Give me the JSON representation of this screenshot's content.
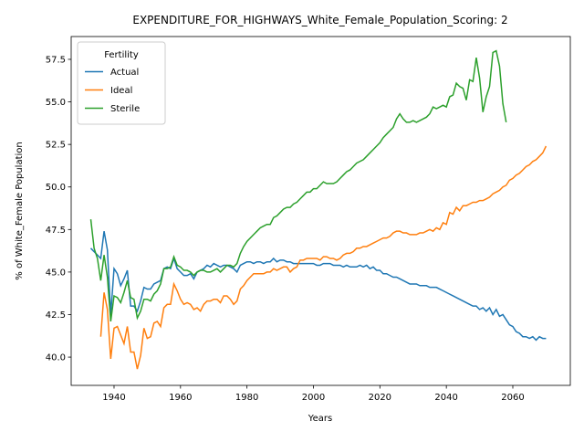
{
  "chart_data": {
    "type": "line",
    "title": "EXPENDITURE_FOR_HIGHWAYS_White_Female_Population_Scoring: 2",
    "xlabel": "Years",
    "ylabel": "% of White_Female Population",
    "legend_title": "Fertility",
    "legend": "upper left",
    "xlim": [
      1927.1,
      2077.3
    ],
    "ylim": [
      38.34,
      58.84
    ],
    "xticks": [
      1940,
      1960,
      1980,
      2000,
      2020,
      2040,
      2060
    ],
    "yticks": [
      {
        "value": 40,
        "label": "40.0"
      },
      42.5,
      {
        "value": 45,
        "label": "45.0"
      },
      47.5,
      {
        "value": 50,
        "label": "50.0"
      },
      52.5,
      {
        "value": 55,
        "label": "55.0"
      },
      57.5
    ],
    "x": [
      1933,
      1934,
      1935,
      1936,
      1937,
      1938,
      1939,
      1940,
      1941,
      1942,
      1943,
      1944,
      1945,
      1946,
      1947,
      1948,
      1949,
      1950,
      1951,
      1952,
      1953,
      1954,
      1955,
      1956,
      1957,
      1958,
      1959,
      1960,
      1961,
      1962,
      1963,
      1964,
      1965,
      1966,
      1967,
      1968,
      1969,
      1970,
      1971,
      1972,
      1973,
      1974,
      1975,
      1976,
      1977,
      1978,
      1979,
      1980,
      1981,
      1982,
      1983,
      1984,
      1985,
      1986,
      1987,
      1988,
      1989,
      1990,
      1991,
      1992,
      1993,
      1994,
      1995,
      1996,
      1997,
      1998,
      1999,
      2000,
      2001,
      2002,
      2003,
      2004,
      2005,
      2006,
      2007,
      2008,
      2009,
      2010,
      2011,
      2012,
      2013,
      2014,
      2015,
      2016,
      2017,
      2018,
      2019,
      2020,
      2021,
      2022,
      2023,
      2024,
      2025,
      2026,
      2027,
      2028,
      2029,
      2030,
      2031,
      2032,
      2033,
      2034,
      2035,
      2036,
      2037,
      2038,
      2039,
      2040,
      2041,
      2042,
      2043,
      2044,
      2045,
      2046,
      2047,
      2048,
      2049,
      2050,
      2051,
      2052,
      2053,
      2054,
      2055,
      2056,
      2057,
      2058,
      2059,
      2060,
      2061,
      2062,
      2063,
      2064,
      2065,
      2066,
      2067,
      2068,
      2069,
      2070
    ],
    "series": [
      {
        "name": "Actual",
        "color": "#1f77b4",
        "values": [
          46.4,
          46.2,
          46.0,
          45.8,
          47.4,
          46.3,
          42.5,
          45.2,
          44.9,
          44.2,
          44.6,
          45.1,
          43.0,
          43.0,
          42.7,
          43.3,
          44.1,
          44.0,
          44.0,
          44.3,
          44.4,
          44.5,
          45.2,
          45.3,
          45.2,
          45.8,
          45.2,
          45.0,
          44.8,
          44.8,
          44.9,
          44.6,
          45.0,
          45.1,
          45.2,
          45.4,
          45.3,
          45.5,
          45.4,
          45.3,
          45.4,
          45.4,
          45.3,
          45.2,
          45.0,
          45.4,
          45.5,
          45.6,
          45.6,
          45.5,
          45.6,
          45.6,
          45.5,
          45.6,
          45.6,
          45.8,
          45.6,
          45.7,
          45.7,
          45.6,
          45.6,
          45.5,
          45.5,
          45.5,
          45.5,
          45.5,
          45.5,
          45.5,
          45.4,
          45.4,
          45.5,
          45.5,
          45.5,
          45.4,
          45.4,
          45.4,
          45.3,
          45.4,
          45.3,
          45.3,
          45.3,
          45.4,
          45.3,
          45.4,
          45.2,
          45.3,
          45.1,
          45.1,
          44.9,
          44.9,
          44.8,
          44.7,
          44.7,
          44.6,
          44.5,
          44.4,
          44.3,
          44.3,
          44.3,
          44.2,
          44.2,
          44.2,
          44.1,
          44.1,
          44.1,
          44.0,
          43.9,
          43.8,
          43.7,
          43.6,
          43.5,
          43.4,
          43.3,
          43.2,
          43.1,
          43.0,
          43.0,
          42.8,
          42.9,
          42.7,
          42.9,
          42.5,
          42.8,
          42.4,
          42.5,
          42.2,
          41.9,
          41.8,
          41.5,
          41.4,
          41.2,
          41.2,
          41.1,
          41.2,
          41.0,
          41.2,
          41.1,
          41.1
        ]
      },
      {
        "name": "Ideal",
        "color": "#ff7f0e",
        "values": [
          null,
          null,
          null,
          41.2,
          43.8,
          42.8,
          39.9,
          41.7,
          41.8,
          41.3,
          40.8,
          41.8,
          40.3,
          40.3,
          39.3,
          40.1,
          41.7,
          41.1,
          41.2,
          42.0,
          42.1,
          41.8,
          42.9,
          43.1,
          43.1,
          44.3,
          43.9,
          43.4,
          43.1,
          43.2,
          43.1,
          42.8,
          42.9,
          42.7,
          43.1,
          43.3,
          43.3,
          43.4,
          43.4,
          43.2,
          43.6,
          43.6,
          43.4,
          43.1,
          43.3,
          44.0,
          44.2,
          44.5,
          44.7,
          44.9,
          44.9,
          44.9,
          44.9,
          45.0,
          45.0,
          45.2,
          45.1,
          45.2,
          45.3,
          45.3,
          45.0,
          45.2,
          45.3,
          45.7,
          45.7,
          45.8,
          45.8,
          45.8,
          45.8,
          45.7,
          45.9,
          45.9,
          45.8,
          45.8,
          45.7,
          45.8,
          46.0,
          46.1,
          46.1,
          46.2,
          46.4,
          46.4,
          46.5,
          46.5,
          46.6,
          46.7,
          46.8,
          46.9,
          47.0,
          47.0,
          47.1,
          47.3,
          47.4,
          47.4,
          47.3,
          47.3,
          47.2,
          47.2,
          47.2,
          47.3,
          47.3,
          47.4,
          47.5,
          47.4,
          47.6,
          47.5,
          47.9,
          47.8,
          48.5,
          48.4,
          48.8,
          48.6,
          48.9,
          48.9,
          49.0,
          49.1,
          49.1,
          49.2,
          49.2,
          49.3,
          49.4,
          49.6,
          49.7,
          49.8,
          50.0,
          50.1,
          50.4,
          50.5,
          50.7,
          50.8,
          51.0,
          51.2,
          51.3,
          51.5,
          51.6,
          51.8,
          52.0,
          52.4
        ]
      },
      {
        "name": "Sterile",
        "color": "#2ca02c",
        "values": [
          48.1,
          46.4,
          45.8,
          44.5,
          46.0,
          44.7,
          42.1,
          43.6,
          43.5,
          43.2,
          43.8,
          44.5,
          43.5,
          43.4,
          42.3,
          42.7,
          43.4,
          43.4,
          43.3,
          43.7,
          43.9,
          44.3,
          45.2,
          45.2,
          45.3,
          45.9,
          45.4,
          45.3,
          45.1,
          45.1,
          45.0,
          44.8,
          45.0,
          45.1,
          45.1,
          45.0,
          45.0,
          45.1,
          45.2,
          45.0,
          45.2,
          45.4,
          45.4,
          45.3,
          45.5,
          46.1,
          46.5,
          46.8,
          47.0,
          47.2,
          47.4,
          47.6,
          47.7,
          47.8,
          47.8,
          48.2,
          48.3,
          48.5,
          48.7,
          48.8,
          48.8,
          49.0,
          49.1,
          49.3,
          49.5,
          49.7,
          49.7,
          49.9,
          49.9,
          50.1,
          50.3,
          50.2,
          50.2,
          50.2,
          50.3,
          50.5,
          50.7,
          50.9,
          51.0,
          51.2,
          51.4,
          51.5,
          51.6,
          51.8,
          52.0,
          52.2,
          52.4,
          52.6,
          52.9,
          53.1,
          53.3,
          53.5,
          54.0,
          54.3,
          54.0,
          53.8,
          53.8,
          53.9,
          53.8,
          53.9,
          54.0,
          54.1,
          54.3,
          54.7,
          54.6,
          54.7,
          54.8,
          54.7,
          55.3,
          55.4,
          56.1,
          55.9,
          55.8,
          55.1,
          56.3,
          56.2,
          57.6,
          56.4,
          54.4,
          55.3,
          55.9,
          57.9,
          58.0,
          57.1,
          54.9,
          53.8,
          null,
          null,
          null,
          null,
          null,
          null,
          null,
          null,
          null,
          null,
          null,
          null
        ]
      }
    ]
  }
}
